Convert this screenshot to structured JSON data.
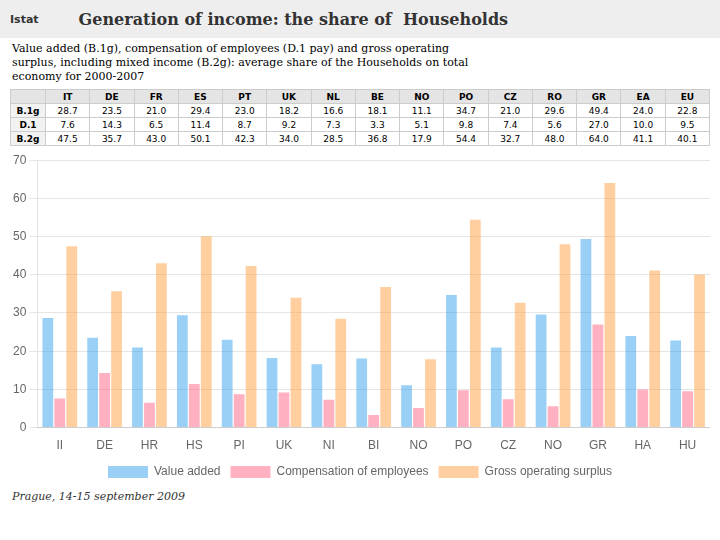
{
  "chart_data": {
    "type": "bar",
    "title": "Generation of income: the share of  Households",
    "subtitle": [
      "Value added (B.1g), compensation of employees (D.1 pay) and gross operating",
      "surplus, including mixed income (B.2g): average share of the Households on total",
      "economy for 2000-2007"
    ],
    "annotations": [
      "Istat",
      "Prague, 14-15 september 2009"
    ],
    "categories": [
      "II",
      "DE",
      "HR",
      "HS",
      "PI",
      "UK",
      "NI",
      "BI",
      "NO",
      "PO",
      "CZ",
      "NO",
      "GR",
      "HA",
      "HU"
    ],
    "series": [
      {
        "name": "Value added",
        "values": [
          28.7,
          23.5,
          21.0,
          29.4,
          23.0,
          18.2,
          16.6,
          18.1,
          11.1,
          34.7,
          21.0,
          29.6,
          49.4,
          24.0,
          22.8
        ]
      },
      {
        "name": "Compensation of employees",
        "values": [
          7.6,
          14.3,
          6.5,
          11.4,
          8.7,
          9.2,
          7.3,
          3.3,
          5.1,
          9.8,
          7.4,
          5.6,
          27.0,
          10.0,
          9.5
        ]
      },
      {
        "name": "Gross operating surplus",
        "values": [
          47.5,
          35.7,
          43.0,
          50.1,
          42.3,
          34.0,
          28.5,
          36.8,
          17.9,
          54.4,
          32.7,
          48.0,
          64.0,
          41.1,
          40.1
        ]
      }
    ],
    "table": {
      "columns": [
        "IT",
        "DE",
        "FR",
        "ES",
        "PT",
        "UK",
        "NL",
        "BE",
        "NO",
        "PO",
        "CZ",
        "RO",
        "GR",
        "EA",
        "EU"
      ],
      "rows": [
        {
          "name": "B.1g",
          "cells": [
            "28.7",
            "23.5",
            "21.0",
            "29.4",
            "23.0",
            "18.2",
            "16.6",
            "18.1",
            "11.1",
            "34.7",
            "21.0",
            "29.6",
            "49.4",
            "24.0",
            "22.8"
          ]
        },
        {
          "name": "D.1",
          "cells": [
            "7.6",
            "14.3",
            "6.5",
            "11.4",
            "8.7",
            "9.2",
            "7.3",
            "3.3",
            "5.1",
            "9.8",
            "7.4",
            "5.6",
            "27.0",
            "10.0",
            "9.5"
          ]
        },
        {
          "name": "B.2g",
          "cells": [
            "47.5",
            "35.7",
            "43.0",
            "50.1",
            "42.3",
            "34.0",
            "28.5",
            "36.8",
            "17.9",
            "54.4",
            "32.7",
            "48.0",
            "64.0",
            "41.1",
            "40.1"
          ]
        }
      ]
    },
    "ylim": [
      0,
      70
    ],
    "yticks": [
      0,
      10,
      20,
      30,
      40,
      50,
      60,
      70
    ],
    "grid": true,
    "legend": "bottom"
  }
}
